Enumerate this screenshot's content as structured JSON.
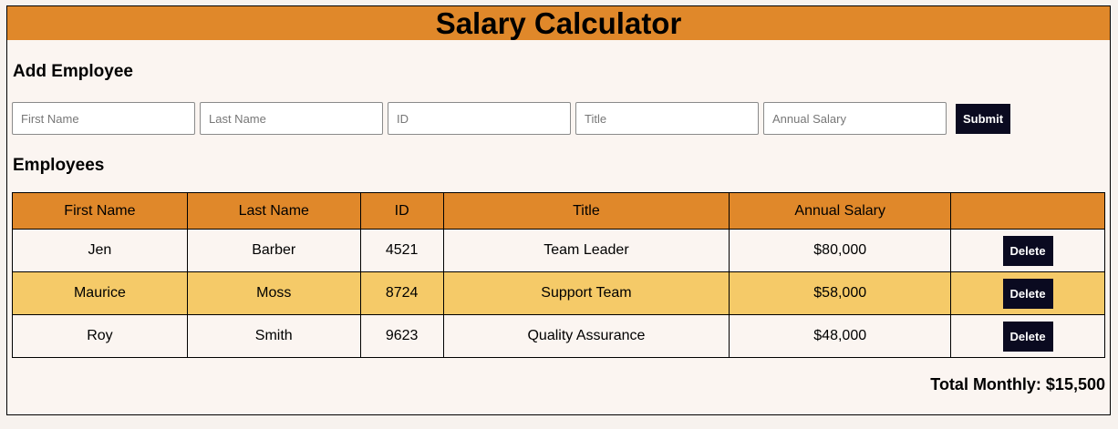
{
  "header": {
    "title": "Salary Calculator"
  },
  "form": {
    "section_title": "Add Employee",
    "fields": {
      "first_name": {
        "placeholder": "First Name"
      },
      "last_name": {
        "placeholder": "Last Name"
      },
      "id": {
        "placeholder": "ID"
      },
      "title": {
        "placeholder": "Title"
      },
      "annual_salary": {
        "placeholder": "Annual Salary"
      }
    },
    "submit_label": "Submit"
  },
  "employees": {
    "section_title": "Employees",
    "columns": [
      "First Name",
      "Last Name",
      "ID",
      "Title",
      "Annual Salary",
      ""
    ],
    "rows": [
      {
        "first_name": "Jen",
        "last_name": "Barber",
        "id": "4521",
        "title": "Team Leader",
        "annual_salary": "$80,000",
        "action": "Delete"
      },
      {
        "first_name": "Maurice",
        "last_name": "Moss",
        "id": "8724",
        "title": "Support Team",
        "annual_salary": "$58,000",
        "action": "Delete"
      },
      {
        "first_name": "Roy",
        "last_name": "Smith",
        "id": "9623",
        "title": "Quality Assurance",
        "annual_salary": "$48,000",
        "action": "Delete"
      }
    ]
  },
  "total": {
    "label": "Total Monthly: $15,500"
  },
  "colors": {
    "header_bg": "#e0882a",
    "row_highlight": "#f5ca68",
    "button_bg": "#0a0a20",
    "page_bg": "#fbf5f1"
  }
}
